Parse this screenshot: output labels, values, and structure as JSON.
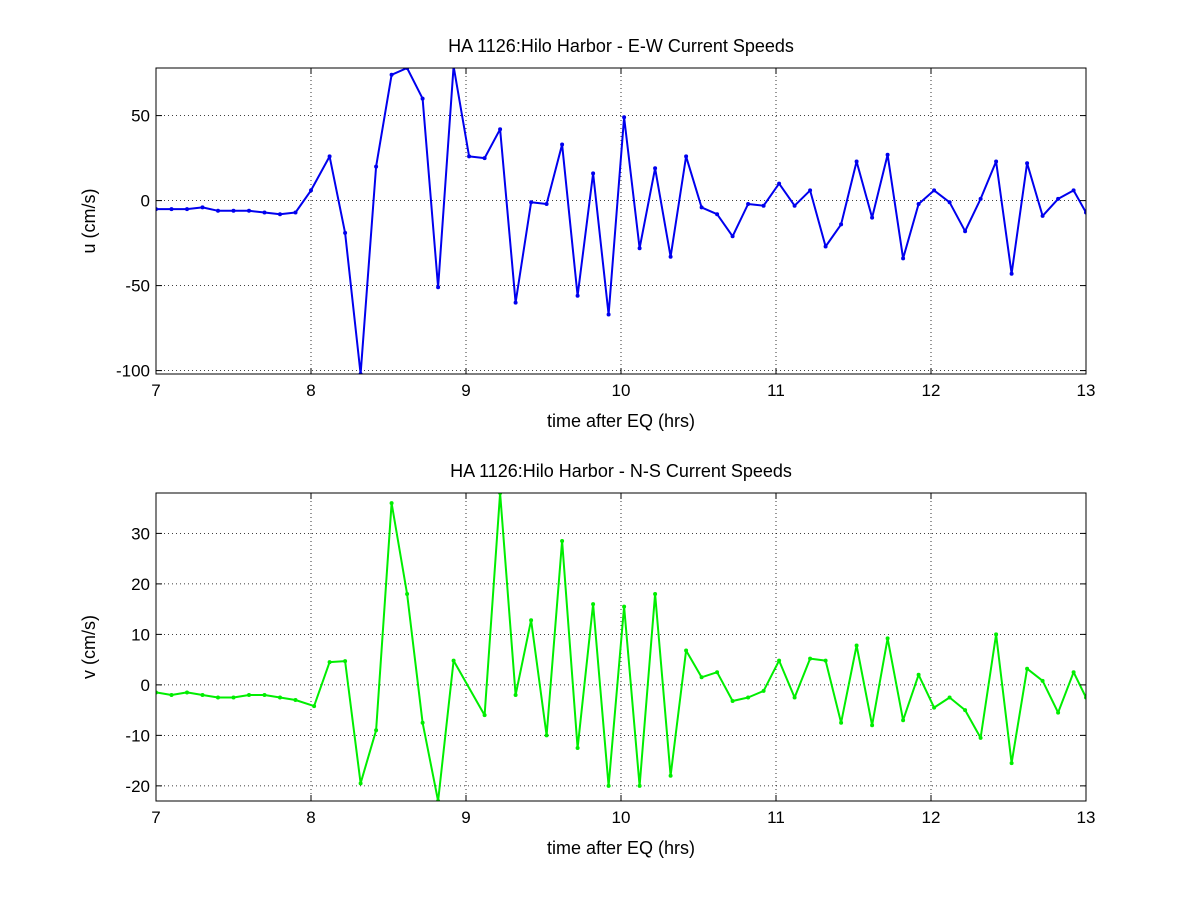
{
  "chart_data": [
    {
      "type": "line",
      "title": "HA 1126:Hilo Harbor - E-W Current Speeds",
      "xlabel": "time after EQ (hrs)",
      "ylabel": "u (cm/s)",
      "xlim": [
        7,
        13
      ],
      "ylim": [
        -102,
        78
      ],
      "xticks": [
        7,
        8,
        9,
        10,
        11,
        12,
        13
      ],
      "yticks": [
        -100,
        -50,
        0,
        50
      ],
      "grid": true,
      "line_color": "#0000ee",
      "series": [
        {
          "x": [
            7.0,
            7.1,
            7.2,
            7.3,
            7.4,
            7.5,
            7.6,
            7.7,
            7.8,
            7.9,
            8.0,
            8.12,
            8.22,
            8.32,
            8.42,
            8.52,
            8.62,
            8.72,
            8.82,
            8.92,
            9.02,
            9.12,
            9.22,
            9.32,
            9.42,
            9.52,
            9.62,
            9.72,
            9.82,
            9.92,
            10.02,
            10.12,
            10.22,
            10.32,
            10.42,
            10.52,
            10.62,
            10.72,
            10.82,
            10.92,
            11.02,
            11.12,
            11.22,
            11.32,
            11.42,
            11.52,
            11.62,
            11.72,
            11.82,
            11.92,
            12.02,
            12.12,
            12.22,
            12.32,
            12.42,
            12.52,
            12.62,
            12.72,
            12.82,
            12.92,
            13.0
          ],
          "values": [
            -5,
            -5,
            -5,
            -4,
            -6,
            -6,
            -6,
            -7,
            -8,
            -7,
            6,
            26,
            -19,
            -102,
            20,
            74,
            78,
            60,
            -51,
            79,
            26,
            25,
            42,
            -60,
            -1,
            -2,
            33,
            -56,
            16,
            -67,
            49,
            -28,
            19,
            -33,
            26,
            -4,
            -8,
            -21,
            -2,
            -3,
            10,
            -3,
            6,
            -27,
            -14,
            23,
            -10,
            27,
            -34,
            -2,
            6,
            -1,
            -18,
            1,
            23,
            -43,
            22,
            -9,
            1,
            6,
            -7
          ]
        }
      ]
    },
    {
      "type": "line",
      "title": "HA 1126:Hilo Harbor - N-S Current Speeds",
      "xlabel": "time after EQ (hrs)",
      "ylabel": "v (cm/s)",
      "xlim": [
        7,
        13
      ],
      "ylim": [
        -23,
        38
      ],
      "xticks": [
        7,
        8,
        9,
        10,
        11,
        12,
        13
      ],
      "yticks": [
        -20,
        -10,
        0,
        10,
        20,
        30
      ],
      "grid": true,
      "line_color": "#00ee00",
      "series": [
        {
          "x": [
            7.0,
            7.1,
            7.2,
            7.3,
            7.4,
            7.5,
            7.6,
            7.7,
            7.8,
            7.9,
            8.02,
            8.12,
            8.22,
            8.32,
            8.42,
            8.52,
            8.62,
            8.72,
            8.82,
            8.92,
            9.12,
            9.22,
            9.32,
            9.42,
            9.52,
            9.62,
            9.72,
            9.82,
            9.92,
            10.02,
            10.12,
            10.22,
            10.32,
            10.42,
            10.52,
            10.62,
            10.72,
            10.82,
            10.92,
            11.02,
            11.12,
            11.22,
            11.32,
            11.42,
            11.52,
            11.62,
            11.72,
            11.82,
            11.92,
            12.02,
            12.12,
            12.22,
            12.32,
            12.42,
            12.52,
            12.62,
            12.72,
            12.82,
            12.92,
            13.0
          ],
          "values": [
            -1.5,
            -2,
            -1.5,
            -2,
            -2.5,
            -2.5,
            -2,
            -2,
            -2.5,
            -3,
            -4.2,
            4.5,
            4.7,
            -19.5,
            -9,
            36,
            18,
            -7.5,
            -23,
            4.8,
            -6,
            38,
            -2,
            12.8,
            -10,
            28.5,
            -12.5,
            16,
            -20,
            15.5,
            -20,
            18,
            -18,
            6.8,
            1.5,
            2.5,
            -3.2,
            -2.5,
            -1.2,
            4.8,
            -2.5,
            5.2,
            4.8,
            -7.5,
            7.8,
            -8,
            9.2,
            -7,
            2,
            -4.5,
            -2.5,
            -5,
            -10.5,
            10,
            -15.5,
            3.2,
            0.8,
            -5.5,
            2.5,
            -2.5
          ]
        }
      ]
    }
  ]
}
